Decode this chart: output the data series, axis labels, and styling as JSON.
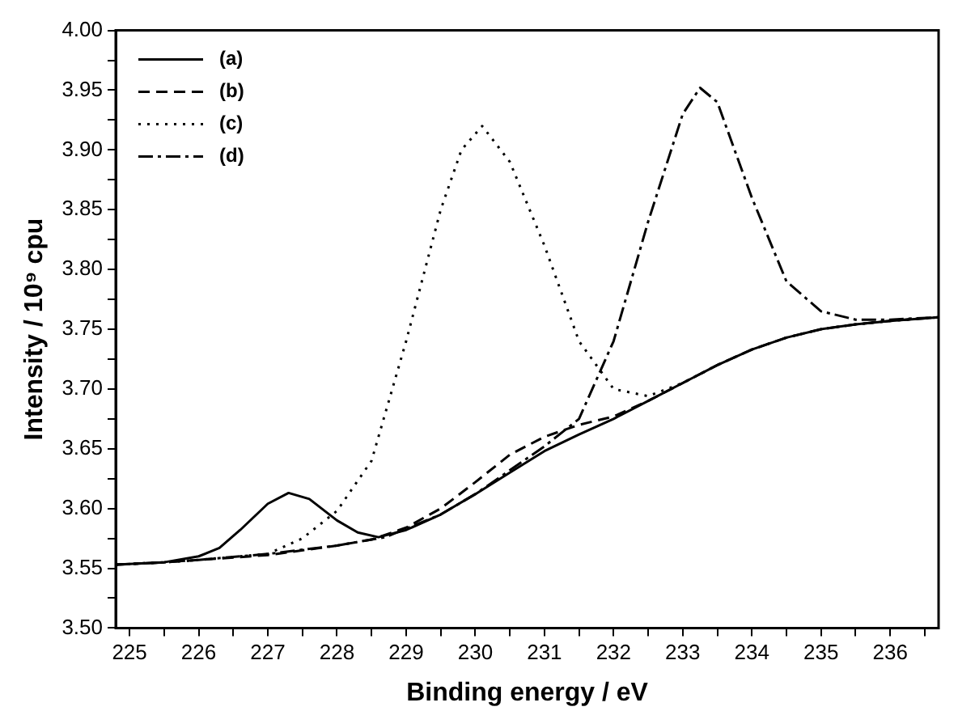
{
  "chart_data": {
    "type": "line",
    "xlabel": "Binding energy / eV",
    "ylabel": "Intensity / 10⁹ cpu",
    "xlim": [
      224.8,
      236.7
    ],
    "xticks": [
      225,
      {
        "value": 225.5,
        "label": null
      },
      226,
      {
        "value": 226.5,
        "label": null
      },
      227,
      {
        "value": 227.5,
        "label": null
      },
      228,
      {
        "value": 228.5,
        "label": null
      },
      229,
      {
        "value": 229.5,
        "label": null
      },
      230,
      {
        "value": 230.5,
        "label": null
      },
      231,
      {
        "value": 231.5,
        "label": null
      },
      232,
      {
        "value": 232.5,
        "label": null
      },
      233,
      {
        "value": 233.5,
        "label": null
      },
      234,
      {
        "value": 234.5,
        "label": null
      },
      235,
      {
        "value": 235.5,
        "label": null
      },
      236,
      {
        "value": 236.5,
        "label": null
      }
    ],
    "ylim": [
      3.5,
      4.0
    ],
    "yticks": [
      {
        "value": 3.5,
        "label": "3.50"
      },
      {
        "value": 3.525,
        "label": null
      },
      {
        "value": 3.55,
        "label": "3.55"
      },
      {
        "value": 3.575,
        "label": null
      },
      {
        "value": 3.6,
        "label": "3.60"
      },
      {
        "value": 3.625,
        "label": null
      },
      {
        "value": 3.65,
        "label": "3.65"
      },
      {
        "value": 3.675,
        "label": null
      },
      {
        "value": 3.7,
        "label": "3.70"
      },
      {
        "value": 3.725,
        "label": null
      },
      {
        "value": 3.75,
        "label": "3.75"
      },
      {
        "value": 3.775,
        "label": null
      },
      {
        "value": 3.8,
        "label": "3.80"
      },
      {
        "value": 3.825,
        "label": null
      },
      {
        "value": 3.85,
        "label": "3.85"
      },
      {
        "value": 3.875,
        "label": null
      },
      {
        "value": 3.9,
        "label": "3.90"
      },
      {
        "value": 3.925,
        "label": null
      },
      {
        "value": 3.95,
        "label": "3.95"
      },
      {
        "value": 3.975,
        "label": null
      },
      {
        "value": 4.0,
        "label": "4.00"
      }
    ],
    "grid": false,
    "legend": "top left",
    "marker": "none",
    "series": [
      {
        "name": "(a)",
        "color": "#000000",
        "line_style": "solid",
        "x": [
          224.8,
          225.5,
          226,
          226.3,
          226.6,
          227,
          227.3,
          227.6,
          228,
          228.3,
          228.6,
          229,
          229.5,
          230,
          230.5,
          231,
          231.5,
          232,
          232.5,
          233,
          233.5,
          234,
          234.5,
          235,
          235.5,
          236,
          236.7
        ],
        "values": [
          3.553,
          3.555,
          3.56,
          3.567,
          3.582,
          3.604,
          3.613,
          3.608,
          3.59,
          3.58,
          3.576,
          3.582,
          3.595,
          3.612,
          3.63,
          3.648,
          3.662,
          3.675,
          3.69,
          3.705,
          3.72,
          3.733,
          3.743,
          3.75,
          3.754,
          3.757,
          3.76
        ]
      },
      {
        "name": "(b)",
        "color": "#000000",
        "line_style": "dashed",
        "x": [
          224.8,
          225.5,
          226,
          227,
          228,
          228.5,
          229,
          229.5,
          230,
          230.5,
          231,
          231.5,
          232,
          232.5,
          233,
          233.5,
          234,
          234.5,
          235,
          235.5,
          236,
          236.7
        ],
        "values": [
          3.553,
          3.555,
          3.557,
          3.561,
          3.569,
          3.574,
          3.584,
          3.6,
          3.622,
          3.645,
          3.66,
          3.67,
          3.677,
          3.69,
          3.705,
          3.72,
          3.733,
          3.743,
          3.75,
          3.754,
          3.757,
          3.76
        ]
      },
      {
        "name": "(c)",
        "color": "#000000",
        "line_style": "dotted",
        "x": [
          224.8,
          225.5,
          226,
          227,
          227.5,
          228,
          228.5,
          229,
          229.5,
          229.8,
          230.1,
          230.5,
          231,
          231.5,
          232,
          232.5,
          233,
          233.5,
          234,
          234.5,
          235,
          235.5,
          236,
          236.7
        ],
        "values": [
          3.553,
          3.555,
          3.557,
          3.562,
          3.575,
          3.598,
          3.64,
          3.74,
          3.85,
          3.9,
          3.92,
          3.89,
          3.82,
          3.74,
          3.7,
          3.694,
          3.705,
          3.72,
          3.733,
          3.743,
          3.75,
          3.754,
          3.757,
          3.76
        ]
      },
      {
        "name": "(d)",
        "color": "#000000",
        "line_style": "dashdot",
        "x": [
          224.8,
          225.5,
          226,
          227,
          228,
          228.7,
          229.5,
          230,
          230.5,
          231,
          231.5,
          232,
          232.5,
          233,
          233.25,
          233.5,
          234,
          234.5,
          235,
          235.5,
          236,
          236.7
        ],
        "values": [
          3.553,
          3.555,
          3.557,
          3.562,
          3.569,
          3.576,
          3.595,
          3.612,
          3.632,
          3.652,
          3.675,
          3.74,
          3.84,
          3.93,
          3.952,
          3.94,
          3.86,
          3.79,
          3.765,
          3.758,
          3.758,
          3.76
        ]
      }
    ]
  }
}
